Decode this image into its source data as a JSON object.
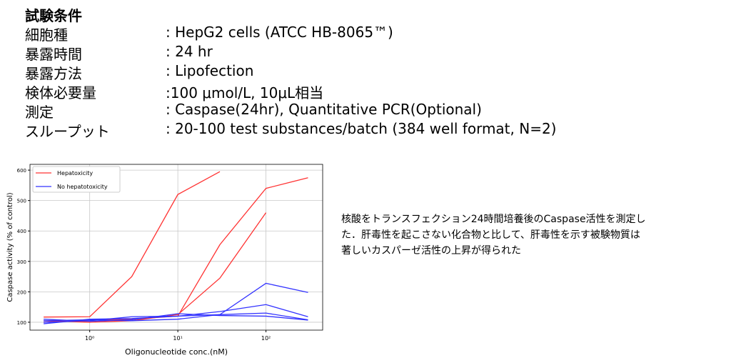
{
  "header": {
    "title": "試験条件"
  },
  "conditions": [
    {
      "label": "細胞種",
      "value": ": HepG2 cells (ATCC HB-8065™)"
    },
    {
      "label": "暴露時間",
      "value": ": 24 hr"
    },
    {
      "label": "暴露方法",
      "value": ": Lipofection"
    },
    {
      "label": "検体必要量",
      "value": ":100 μmol/L, 10μL相当"
    },
    {
      "label": "測定",
      "value": ": Caspase(24hr), Quantitative PCR(Optional)"
    },
    {
      "label": "スループット",
      "value": ": 20-100 test substances/batch (384 well format, N=2)"
    }
  ],
  "description": [
    "核酸をトランスフェクション24時間培養後のCaspase活性を測定し",
    "た．肝毒性を起こさない化合物と比して、肝毒性を示す被験物質は",
    "著しいカスパーゼ活性の上昇が得られた"
  ],
  "chart_data": {
    "type": "line",
    "x_label": "Oligonucleotide conc.(nM)",
    "y_label": "Caspase activity (% of control)",
    "xscale": "log",
    "grid": true,
    "legend": "upper left",
    "xlim": [
      0.21,
      440
    ],
    "xticks": [
      {
        "value": 1,
        "label": "10⁰"
      },
      {
        "value": 10,
        "label": "10¹"
      },
      {
        "value": 100,
        "label": "10²"
      }
    ],
    "ylim": [
      74,
      619
    ],
    "yticks": [
      100,
      200,
      300,
      400,
      500,
      600
    ],
    "series": [
      {
        "name": "Hepatoxicity",
        "color": "#ff3333",
        "lines": [
          {
            "x": [
              0.3,
              1,
              3,
              10,
              30
            ],
            "values": [
              117,
              118,
              250,
              520,
              595
            ]
          },
          {
            "x": [
              0.3,
              1,
              3,
              10,
              30,
              100,
              300
            ],
            "values": [
              100,
              108,
              110,
              120,
              355,
              540,
              575
            ]
          },
          {
            "x": [
              0.3,
              1,
              3,
              10,
              30,
              100
            ],
            "values": [
              105,
              100,
              105,
              125,
              245,
              460
            ]
          }
        ]
      },
      {
        "name": "No hepatotoxicity",
        "color": "#3333ff",
        "lines": [
          {
            "x": [
              0.3,
              1,
              3,
              10,
              30,
              100,
              300
            ],
            "values": [
              95,
              110,
              112,
              120,
              125,
              228,
              198
            ]
          },
          {
            "x": [
              0.3,
              1,
              3,
              10,
              30,
              100,
              300
            ],
            "values": [
              100,
              105,
              118,
              120,
              135,
              158,
              118
            ]
          },
          {
            "x": [
              0.3,
              1,
              3,
              10,
              30,
              100,
              300
            ],
            "values": [
              105,
              108,
              105,
              110,
              125,
              130,
              108
            ]
          },
          {
            "x": [
              0.3,
              1,
              3,
              10,
              30,
              100,
              300
            ],
            "values": [
              110,
              103,
              108,
              128,
              122,
              120,
              107
            ]
          }
        ]
      }
    ]
  }
}
